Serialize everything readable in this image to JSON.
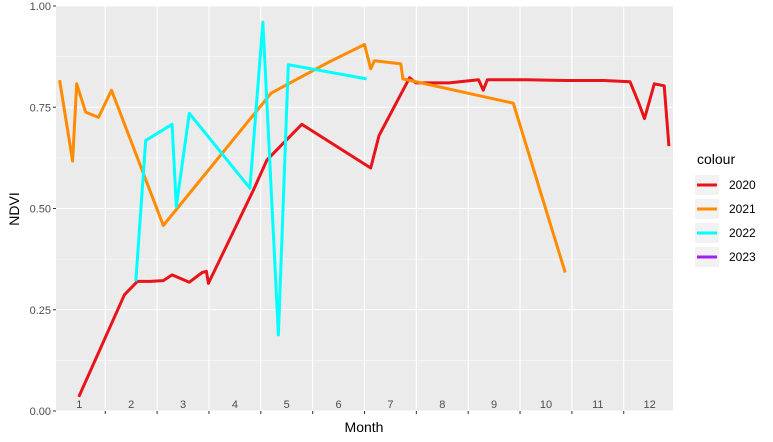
{
  "chart_data": {
    "type": "line",
    "xlabel": "Month",
    "ylabel": "NDVI",
    "xlim": [
      0.55,
      12.45
    ],
    "ylim": [
      0,
      1
    ],
    "grid": true,
    "legend_position": "right",
    "legend_title": "colour",
    "x_ticks": [
      1,
      2,
      3,
      4,
      5,
      6,
      7,
      8,
      9,
      10,
      11,
      12
    ],
    "y_ticks": [
      0,
      0.25,
      0.5,
      0.75,
      1
    ],
    "y_tick_labels": [
      "0.00",
      "0.25",
      "0.50",
      "0.75",
      "1.00"
    ],
    "series": [
      {
        "name": "2020",
        "color": "#e8141a",
        "points": [
          [
            0.99,
            0.035
          ],
          [
            1.87,
            0.287
          ],
          [
            2.12,
            0.32
          ],
          [
            2.37,
            0.32
          ],
          [
            2.62,
            0.322
          ],
          [
            2.79,
            0.336
          ],
          [
            3.12,
            0.318
          ],
          [
            3.37,
            0.342
          ],
          [
            3.45,
            0.345
          ],
          [
            3.49,
            0.315
          ],
          [
            4.36,
            0.546
          ],
          [
            4.62,
            0.62
          ],
          [
            5.29,
            0.708
          ],
          [
            6.62,
            0.6
          ],
          [
            6.78,
            0.68
          ],
          [
            7.37,
            0.823
          ],
          [
            7.49,
            0.81
          ],
          [
            8.13,
            0.81
          ],
          [
            8.7,
            0.818
          ],
          [
            8.79,
            0.792
          ],
          [
            8.87,
            0.818
          ],
          [
            9.62,
            0.818
          ],
          [
            10.37,
            0.816
          ],
          [
            11.12,
            0.816
          ],
          [
            11.62,
            0.813
          ],
          [
            11.79,
            0.76
          ],
          [
            11.9,
            0.722
          ],
          [
            12.09,
            0.808
          ],
          [
            12.28,
            0.803
          ],
          [
            12.37,
            0.654
          ]
        ]
      },
      {
        "name": "2021",
        "color": "#ff8c00",
        "points": [
          [
            0.62,
            0.817
          ],
          [
            0.87,
            0.617
          ],
          [
            0.95,
            0.808
          ],
          [
            1.12,
            0.738
          ],
          [
            1.37,
            0.725
          ],
          [
            1.62,
            0.792
          ],
          [
            2.62,
            0.458
          ],
          [
            4.7,
            0.785
          ],
          [
            5.79,
            0.86
          ],
          [
            6.5,
            0.905
          ],
          [
            6.62,
            0.845
          ],
          [
            6.69,
            0.865
          ],
          [
            7.2,
            0.857
          ],
          [
            7.24,
            0.82
          ],
          [
            9.37,
            0.76
          ],
          [
            10.37,
            0.342
          ]
        ]
      },
      {
        "name": "2022",
        "color": "#00ffff",
        "points": [
          [
            2.09,
            0.32
          ],
          [
            2.28,
            0.668
          ],
          [
            2.79,
            0.708
          ],
          [
            2.87,
            0.505
          ],
          [
            3.12,
            0.735
          ],
          [
            4.29,
            0.55
          ],
          [
            4.54,
            0.96
          ],
          [
            4.84,
            0.188
          ],
          [
            5.03,
            0.855
          ],
          [
            6.54,
            0.82
          ]
        ]
      },
      {
        "name": "2023",
        "color": "#a020f0",
        "points": []
      }
    ]
  }
}
